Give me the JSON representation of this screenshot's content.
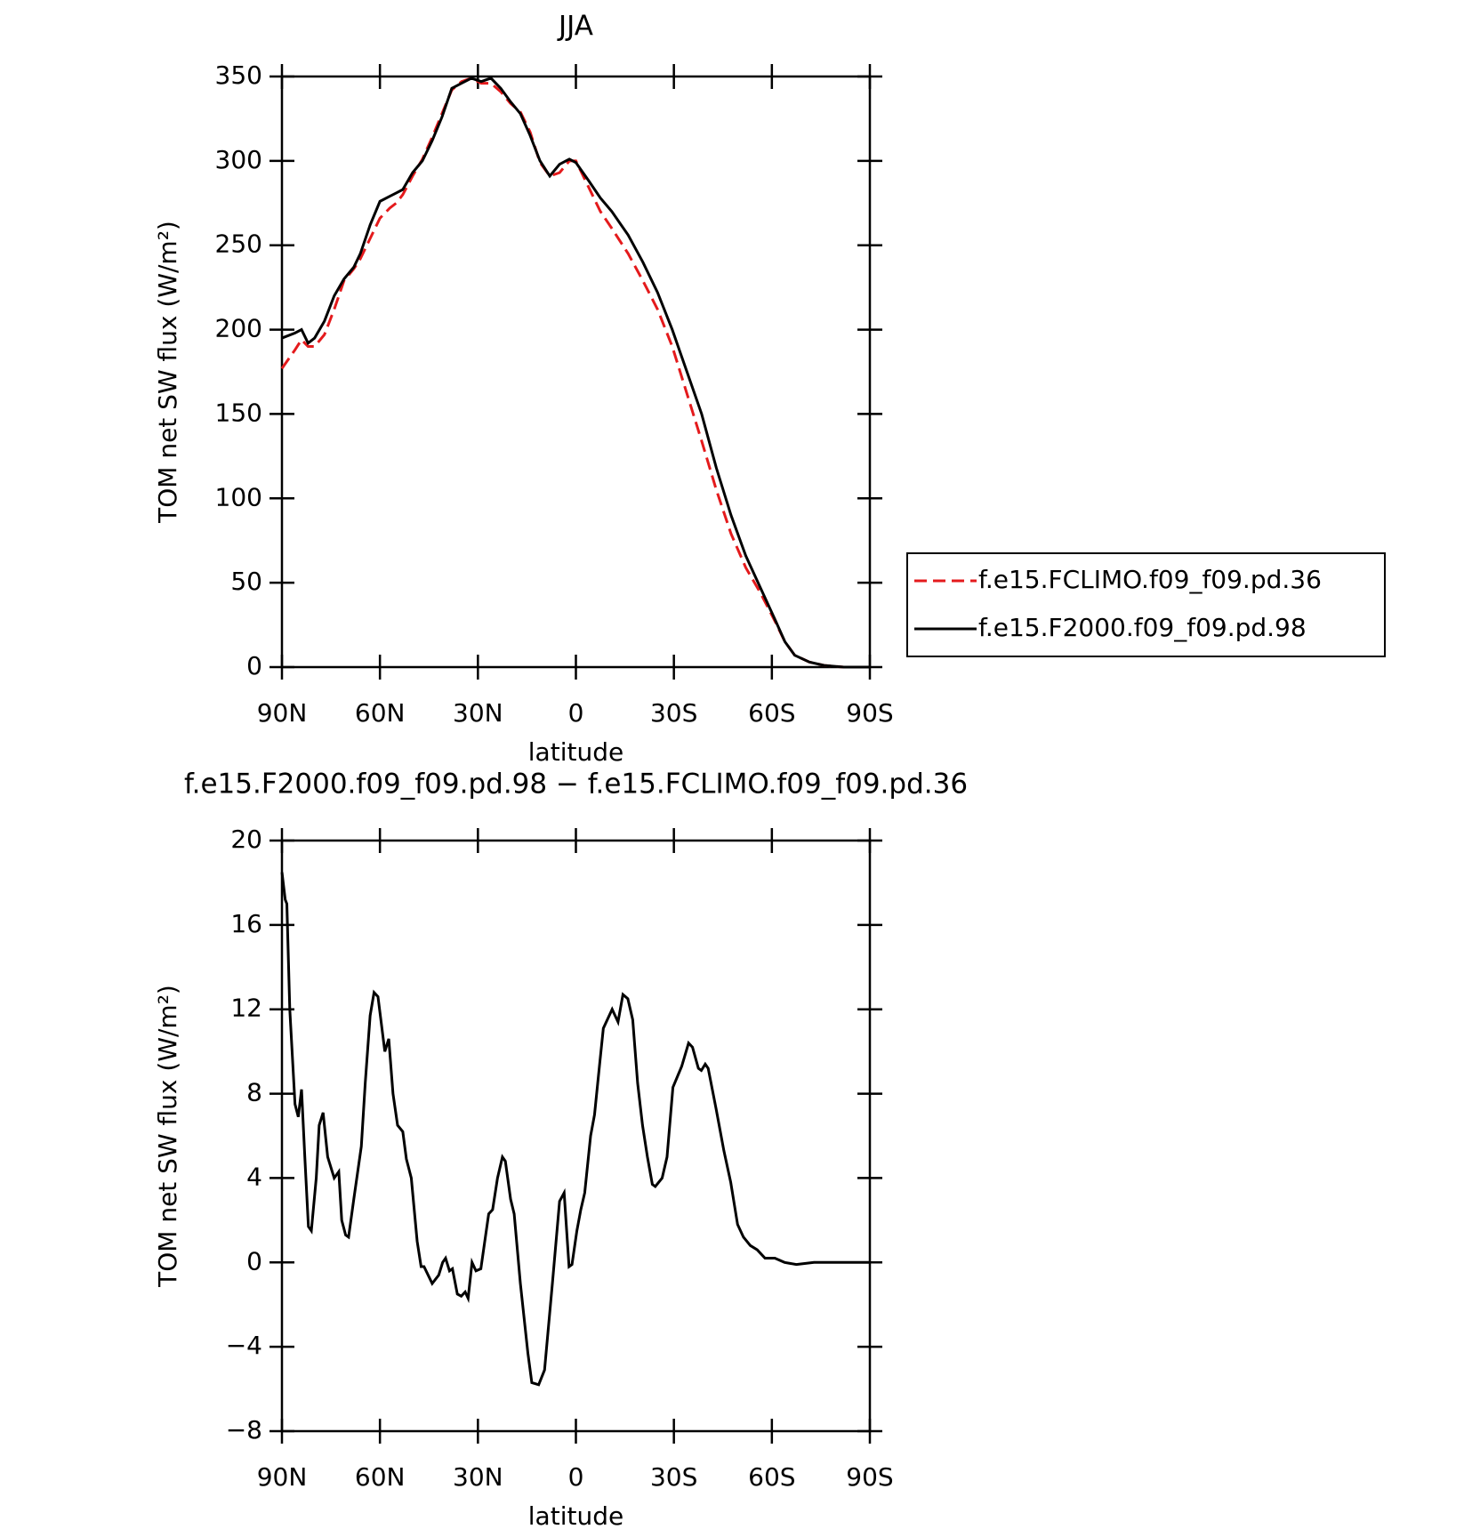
{
  "chart_data": [
    {
      "type": "line",
      "title": "JJA",
      "xlabel": "latitude",
      "ylabel": "TOM net SW flux (W/m²)",
      "xlim": [
        90,
        -90
      ],
      "xticks": [
        {
          "value": 90,
          "label": "90N"
        },
        {
          "value": 60,
          "label": "60N"
        },
        {
          "value": 30,
          "label": "30N"
        },
        0,
        {
          "value": -30,
          "label": "30S"
        },
        {
          "value": -60,
          "label": "60S"
        },
        {
          "value": -90,
          "label": "90S"
        }
      ],
      "ylim": [
        0,
        350
      ],
      "yticks": [
        0,
        50,
        100,
        150,
        200,
        250,
        300,
        350
      ],
      "legend_position": "right",
      "x": [
        90,
        86,
        84,
        82,
        80,
        77,
        74,
        71,
        68,
        66,
        63,
        60,
        57,
        55,
        53,
        50,
        47,
        44,
        41,
        38,
        35,
        32,
        29,
        26,
        23,
        20,
        17,
        14,
        11,
        8,
        5,
        2,
        0,
        -4,
        -7.5,
        -11,
        -16,
        -20.5,
        -25,
        -29.5,
        -34,
        -38.5,
        -43,
        -47.5,
        -52,
        -56.5,
        -61,
        -64,
        -67,
        -71.5,
        -76,
        -82,
        -90
      ],
      "series": [
        {
          "name": "f.e15.FCLIMO.f09_f09.pd.36",
          "color": "#e41a1c",
          "dash": true,
          "values": [
            177,
            188,
            194,
            190,
            190,
            197,
            212,
            229,
            236,
            242,
            254,
            266,
            272,
            275,
            280,
            291,
            301,
            314,
            328,
            342,
            347,
            349,
            346,
            346,
            341,
            334,
            329,
            317,
            299,
            291,
            293,
            300,
            300,
            284,
            270,
            260,
            245,
            229,
            212,
            190,
            162,
            134,
            105,
            79,
            59,
            44,
            27,
            15,
            7,
            3,
            1,
            0,
            0
          ]
        },
        {
          "name": "f.e15.F2000.f09_f09.pd.98",
          "color": "#000000",
          "dash": false,
          "values": [
            195,
            198,
            200,
            192,
            195,
            205,
            220,
            230,
            237,
            245,
            262,
            276,
            279,
            281,
            283,
            293,
            300,
            312,
            326,
            343,
            346,
            349,
            347,
            349,
            343,
            335,
            328,
            315,
            300,
            291,
            298,
            301,
            299,
            288,
            278,
            270,
            256,
            240,
            222,
            200,
            175,
            150,
            118,
            90,
            66,
            47,
            28,
            15,
            7,
            3,
            1,
            0,
            0
          ]
        }
      ]
    },
    {
      "type": "line",
      "title": "f.e15.F2000.f09_f09.pd.98 − f.e15.FCLIMO.f09_f09.pd.36",
      "xlabel": "latitude",
      "ylabel": "TOM net SW flux (W/m²)",
      "xlim": [
        90,
        -90
      ],
      "xticks": [
        {
          "value": 90,
          "label": "90N"
        },
        {
          "value": 60,
          "label": "60N"
        },
        {
          "value": 30,
          "label": "30N"
        },
        0,
        {
          "value": -30,
          "label": "30S"
        },
        {
          "value": -60,
          "label": "60S"
        },
        {
          "value": -90,
          "label": "90S"
        }
      ],
      "ylim": [
        -8,
        20
      ],
      "yticks": [
        {
          "value": -8,
          "label": "−8"
        },
        {
          "value": -4,
          "label": "−4"
        },
        0,
        4,
        8,
        12,
        16,
        20
      ],
      "color": "#000000",
      "x": [
        90,
        89,
        88.5,
        87.6,
        86,
        85,
        84,
        83,
        81.9,
        81,
        79.5,
        78.6,
        77.4,
        76,
        74,
        72.6,
        71.7,
        70.5,
        69.6,
        68,
        65.7,
        64.5,
        63,
        61.8,
        60.6,
        58.5,
        57.3,
        56,
        54.6,
        53,
        51.9,
        50.4,
        48.6,
        47.4,
        46.5,
        44,
        42,
        40.8,
        39.9,
        38.7,
        37.8,
        36.3,
        35.1,
        33.9,
        33,
        31.8,
        30.6,
        29.1,
        26.7,
        25.5,
        24,
        22.5,
        21.6,
        20,
        18.9,
        17,
        14.7,
        13.5,
        11.4,
        9.6,
        7.2,
        5,
        3.6,
        2.1,
        1.2,
        -0.3,
        -1.5,
        -2.7,
        -4.5,
        -5.7,
        -7.2,
        -8.4,
        -11.1,
        -12.9,
        -14.4,
        -15.9,
        -17.4,
        -18.9,
        -20.4,
        -21.9,
        -23.4,
        -24.3,
        -26.4,
        -27.9,
        -29.7,
        -32.4,
        -34.5,
        -35.7,
        -37.5,
        -38.4,
        -39.6,
        -40.5,
        -42.9,
        -45.3,
        -47.4,
        -49.5,
        -51.3,
        -53.4,
        -55.5,
        -57.9,
        -60.9,
        -63.9,
        -67.5,
        -72.9,
        -90
      ],
      "values": [
        18.5,
        17.2,
        17,
        12,
        7.5,
        6.9,
        8.2,
        5,
        1.7,
        1.5,
        4,
        6.5,
        7.1,
        5,
        4,
        4.3,
        2,
        1.3,
        1.2,
        3,
        5.5,
        8.5,
        11.7,
        12.8,
        12.6,
        10,
        10.6,
        8,
        6.5,
        6.2,
        4.9,
        4,
        1,
        -0.2,
        -0.2,
        -1,
        -0.6,
        0,
        0.2,
        -0.4,
        -0.3,
        -1.5,
        -1.6,
        -1.4,
        -1.7,
        0,
        -0.4,
        -0.3,
        2.3,
        2.5,
        4,
        5,
        4.8,
        3,
        2.3,
        -1,
        -4.3,
        -5.7,
        -5.8,
        -5.1,
        -1,
        2.9,
        3.3,
        -0.2,
        -0.1,
        1.5,
        2.5,
        3.3,
        6,
        7,
        9.3,
        11.1,
        12,
        11.4,
        12.7,
        12.5,
        11.5,
        8.5,
        6.5,
        5,
        3.7,
        3.6,
        4,
        5,
        8.3,
        9.3,
        10.4,
        10.2,
        9.2,
        9.1,
        9.4,
        9.2,
        7.3,
        5.3,
        3.8,
        1.8,
        1.2,
        0.8,
        0.6,
        0.2,
        0.2,
        0,
        -0.1,
        0,
        0
      ]
    }
  ]
}
